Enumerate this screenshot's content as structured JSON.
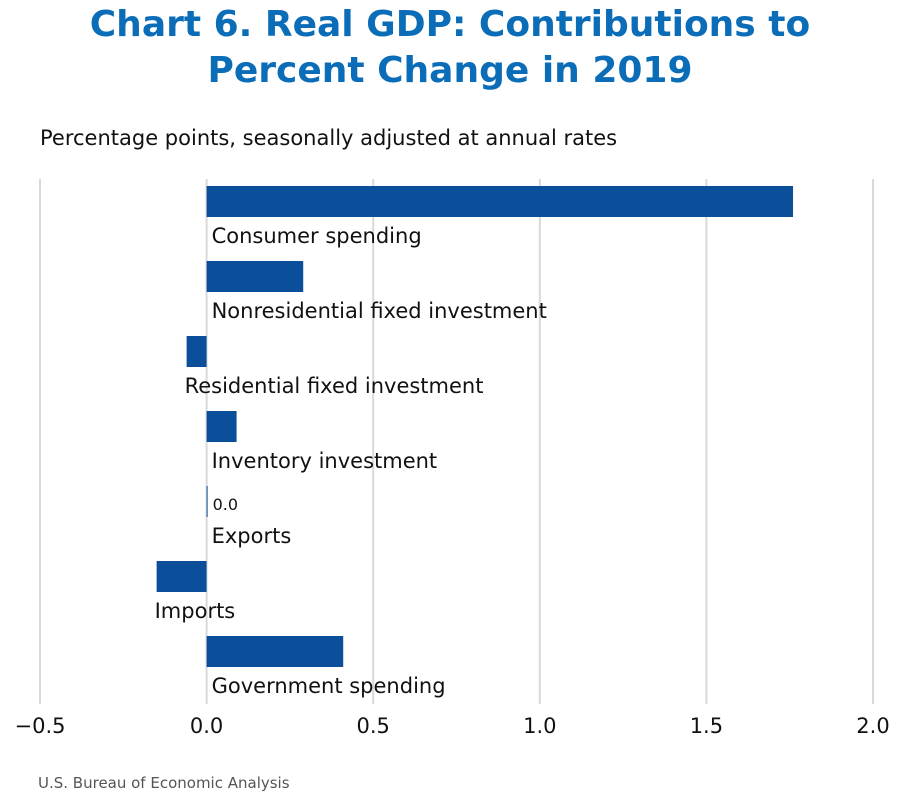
{
  "title_line1": "Chart 6. Real GDP: Contributions to",
  "title_line2": "Percent Change in 2019",
  "subtitle": "Percentage points, seasonally adjusted at annual rates",
  "source": "U.S. Bureau of Economic Analysis",
  "colors": {
    "bar": "#0b4e99",
    "grid": "#d9d9d9",
    "title": "#0b6db7"
  },
  "chart_data": {
    "type": "bar",
    "orientation": "horizontal",
    "categories": [
      "Consumer spending",
      "Nonresidential fixed investment",
      "Residential fixed investment",
      "Inventory investment",
      "Exports",
      "Imports",
      "Government spending"
    ],
    "values": [
      1.76,
      0.29,
      -0.06,
      0.09,
      0.0,
      -0.15,
      0.41
    ],
    "data_labels": {
      "Exports": "0.0"
    },
    "xlim": [
      -0.5,
      2.0
    ],
    "xticks": [
      -0.5,
      0.0,
      0.5,
      1.0,
      1.5,
      2.0
    ],
    "xtick_labels": [
      "−0.5",
      "0.0",
      "0.5",
      "1.0",
      "1.5",
      "2.0"
    ],
    "grid": true,
    "xlabel": "",
    "ylabel": ""
  }
}
